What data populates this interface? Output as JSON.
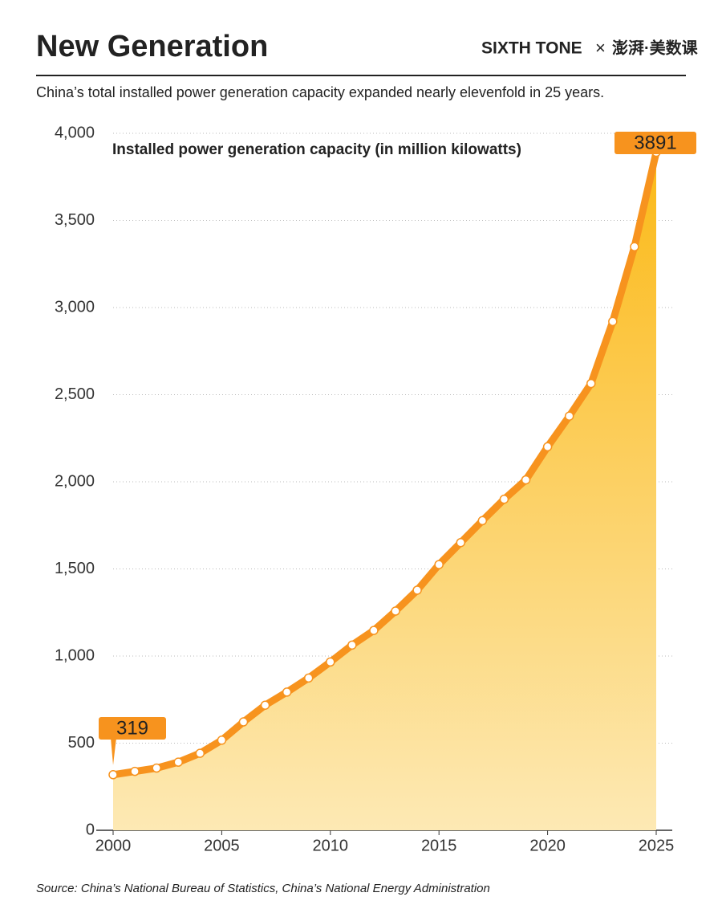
{
  "chart_data": {
    "type": "area",
    "title": "New Generation",
    "brand": "SIXTH TONE",
    "brand_separator": "×",
    "partner": "澎湃·美数课",
    "subtitle": "China’s total installed power generation capacity expanded nearly elevenfold in 25 years.",
    "y_label": "Installed power generation capacity (in million kilowatts)",
    "source": "Source: China’s National Bureau of Statistics, China’s National Energy Administration",
    "x": [
      2000,
      2001,
      2002,
      2003,
      2004,
      2005,
      2006,
      2007,
      2008,
      2009,
      2010,
      2011,
      2012,
      2013,
      2014,
      2015,
      2016,
      2017,
      2018,
      2019,
      2020,
      2021,
      2022,
      2023,
      2024,
      2025
    ],
    "values": [
      319,
      338,
      357,
      391,
      442,
      517,
      622,
      718,
      793,
      874,
      966,
      1063,
      1147,
      1258,
      1378,
      1525,
      1651,
      1777,
      1900,
      2011,
      2201,
      2377,
      2564,
      2920,
      3349,
      3891
    ],
    "color": "#f7931e",
    "area_color": "#fbb917",
    "xlim": [
      2000,
      2025
    ],
    "xticks": [
      2000,
      2005,
      2010,
      2015,
      2020,
      2025
    ],
    "ylim": [
      0,
      4000
    ],
    "yticks": [
      0,
      500,
      {
        "value": 1000,
        "label": "1,000"
      },
      {
        "value": 1500,
        "label": "1,500"
      },
      {
        "value": 2000,
        "label": "2,000"
      },
      {
        "value": 2500,
        "label": "2,500"
      },
      {
        "value": 3000,
        "label": "3,000"
      },
      {
        "value": 3500,
        "label": "3,500"
      },
      {
        "value": 4000,
        "label": "4,000"
      }
    ],
    "grid": true
  }
}
